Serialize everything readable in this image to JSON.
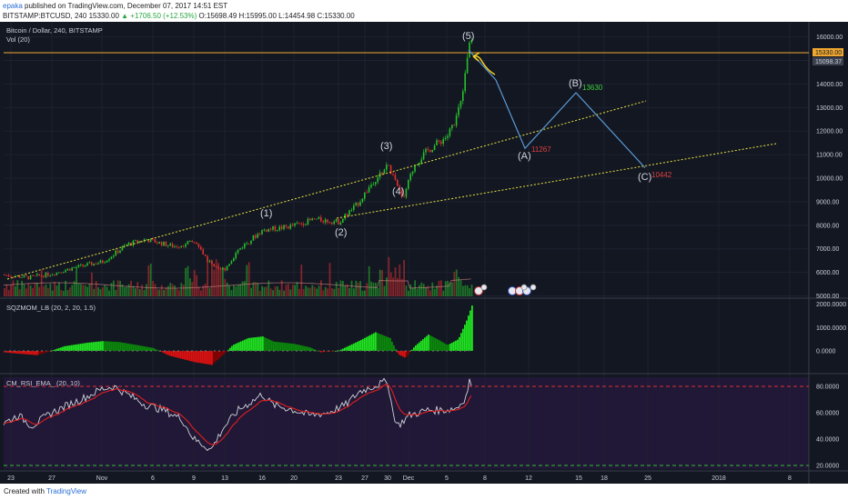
{
  "header": {
    "author": "epaka",
    "published": "published on TradingView.com, December 07, 2017 14:51 EST",
    "symbol": "BITSTAMP:BTCUSD, 240",
    "last_price": "15330.00",
    "change": "▲ +1706.50 (+12.53%)",
    "ohlc": "O:15698.49 H:15995.00 L:14454.98 C:15330.00"
  },
  "footer": {
    "created_with": "Created with",
    "brand": "TradingView"
  },
  "panes": {
    "price_title": "Bitcoin / Dollar, 240, BITSTAMP",
    "vol_title": "Vol (20)",
    "sqz_title": "SQZMOM_LB (20, 2, 20, 1.5)",
    "rsi_title": "CM_RSI_EMA_ (20, 10)"
  },
  "price_axis": {
    "ticks": [
      "16000.00",
      "15000.00",
      "14000.00",
      "13000.00",
      "12000.00",
      "11000.00",
      "10000.00",
      "9000.00",
      "8000.00",
      "7000.00",
      "6000.00",
      "5000.00"
    ],
    "current_label": "15330.00",
    "secondary_label": "15098.37"
  },
  "sqz_axis": {
    "ticks": [
      "2000.0000",
      "1000.0000",
      "0.0000"
    ]
  },
  "rsi_axis": {
    "ticks": [
      "80.0000",
      "60.0000",
      "40.0000",
      "20.0000"
    ]
  },
  "time_axis": {
    "ticks": [
      "23",
      "27",
      "Nov",
      "6",
      "9",
      "13",
      "16",
      "20",
      "23",
      "27",
      "30",
      "Dec",
      "5",
      "8",
      "12",
      "15",
      "18",
      "25",
      "2018",
      "8"
    ]
  },
  "waves": {
    "w1": "(1)",
    "w2": "(2)",
    "w3": "(3)",
    "w4": "(4)",
    "w5": "(5)",
    "wA": "(A)",
    "wB": "(B)",
    "wC": "(C)"
  },
  "targets": {
    "b": "13630",
    "a": "11267",
    "c": "10442"
  },
  "colors": {
    "background": "#131722",
    "up": "#26c02b",
    "down": "#e03030",
    "wave_path": "#5b9bd5",
    "trendline": "#e8e540",
    "price_line": "#f0a830",
    "rsi_line": "#cfd3da",
    "rsi_ema": "#e02020"
  },
  "chart_data": [
    {
      "type": "line",
      "title": "Bitcoin / Dollar, 240, BITSTAMP",
      "x": [
        "Oct 23",
        "Oct 27",
        "Nov 1",
        "Nov 6",
        "Nov 9",
        "Nov 13",
        "Nov 16",
        "Nov 20",
        "Nov 23",
        "Nov 27",
        "Nov 30",
        "Dec 1",
        "Dec 5",
        "Dec 7"
      ],
      "series": [
        {
          "name": "BTCUSD",
          "values": [
            5900,
            5950,
            6400,
            7400,
            7200,
            6100,
            7800,
            8000,
            8100,
            9600,
            9300,
            10800,
            11800,
            15330
          ]
        }
      ],
      "wave_projection": [
        {
          "label": "(5)",
          "date": "Dec 7",
          "value": 15995
        },
        {
          "label": "(A)",
          "date": "Dec 12",
          "value": 11267
        },
        {
          "label": "(B)",
          "date": "Dec 16",
          "value": 13630
        },
        {
          "label": "(C)",
          "date": "Dec 22",
          "value": 10442
        }
      ],
      "ylim": [
        4800,
        16400
      ]
    },
    {
      "type": "bar",
      "title": "SQZMOM_LB (20, 2, 20, 1.5)",
      "x": [
        "Oct 23",
        "Oct 27",
        "Nov 1",
        "Nov 6",
        "Nov 9",
        "Nov 13",
        "Nov 16",
        "Nov 20",
        "Nov 23",
        "Nov 27",
        "Nov 30",
        "Dec 1",
        "Dec 5",
        "Dec 7"
      ],
      "series": [
        {
          "values": [
            -100,
            -150,
            300,
            450,
            200,
            -550,
            600,
            350,
            50,
            700,
            200,
            -250,
            700,
            2050
          ]
        }
      ],
      "ylim": [
        -650,
        2100
      ]
    },
    {
      "type": "line",
      "title": "CM_RSI_EMA_ (20, 10)",
      "x": [
        "Oct 23",
        "Oct 27",
        "Nov 1",
        "Nov 6",
        "Nov 9",
        "Nov 13",
        "Nov 16",
        "Nov 20",
        "Nov 23",
        "Nov 27",
        "Nov 30",
        "Dec 1",
        "Dec 5",
        "Dec 7"
      ],
      "series": [
        {
          "values": [
            54,
            58,
            78,
            70,
            55,
            33,
            72,
            60,
            58,
            78,
            50,
            65,
            66,
            84
          ]
        }
      ],
      "hlines": [
        80,
        20
      ],
      "ylim": [
        15,
        88
      ]
    }
  ]
}
